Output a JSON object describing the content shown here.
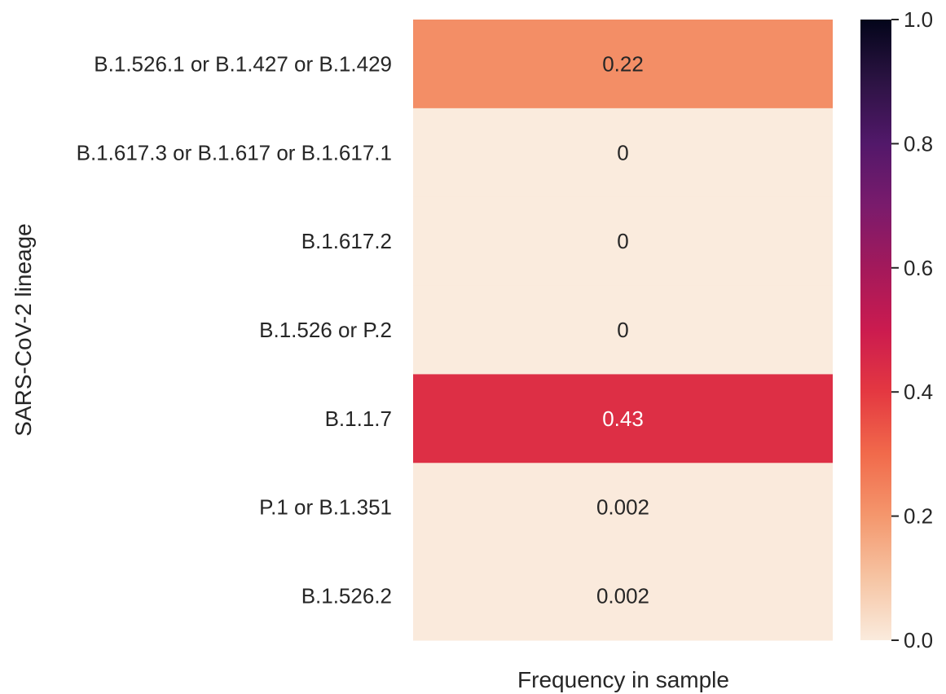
{
  "chart_data": {
    "type": "heatmap",
    "xlabel": "Frequency in sample",
    "ylabel": "SARS-CoV-2 lineage",
    "rows": [
      {
        "label": "B.1.526.1 or B.1.427 or B.1.429",
        "value": 0.22,
        "display": "0.22"
      },
      {
        "label": "B.1.617.3 or B.1.617 or B.1.617.1",
        "value": 0,
        "display": "0"
      },
      {
        "label": "B.1.617.2",
        "value": 0,
        "display": "0"
      },
      {
        "label": "B.1.526 or P.2",
        "value": 0,
        "display": "0"
      },
      {
        "label": "B.1.1.7",
        "value": 0.43,
        "display": "0.43"
      },
      {
        "label": "P.1 or B.1.351",
        "value": 0.002,
        "display": "0.002"
      },
      {
        "label": "B.1.526.2",
        "value": 0.002,
        "display": "0.002"
      }
    ],
    "colorbar": {
      "colormap": "rocket_r",
      "vmin": 0.0,
      "vmax": 1.0,
      "ticks": [
        0.0,
        0.2,
        0.4,
        0.6,
        0.8,
        1.0
      ],
      "tick_labels": [
        "0.0",
        "0.2",
        "0.4",
        "0.6",
        "0.8",
        "1.0"
      ]
    }
  }
}
